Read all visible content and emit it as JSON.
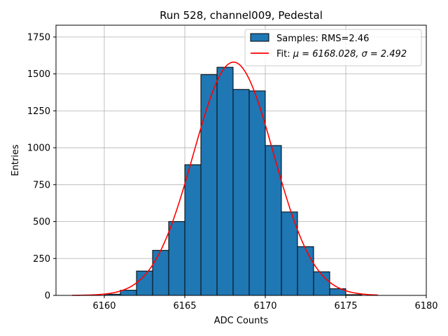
{
  "chart_data": {
    "type": "bar",
    "title": "Run 528, channel009, Pedestal",
    "xlabel": "ADC Counts",
    "ylabel": "Entries",
    "xlim": [
      6157,
      6180
    ],
    "ylim": [
      0,
      1830
    ],
    "xticks": [
      6160,
      6165,
      6170,
      6175,
      6180
    ],
    "yticks": [
      0,
      250,
      500,
      750,
      1000,
      1250,
      1500,
      1750
    ],
    "grid": true,
    "legend_position": "top-right",
    "histogram": {
      "name": "Samples: RMS=2.46",
      "color": "#1f77b4",
      "edgecolor": "#000000",
      "bin_width": 1,
      "bin_edges": [
        6160,
        6161,
        6162,
        6163,
        6164,
        6165,
        6166,
        6167,
        6168,
        6169,
        6170,
        6171,
        6172,
        6173,
        6174,
        6175,
        6176
      ],
      "counts": [
        8,
        35,
        165,
        305,
        500,
        885,
        1495,
        1545,
        1395,
        1385,
        1015,
        565,
        330,
        160,
        45,
        5
      ]
    },
    "fit": {
      "name_prefix": "Fit: ",
      "name_math": "μ = 6168.028, σ = 2.492",
      "name": "Fit: μ = 6168.028, σ = 2.492",
      "color": "#ff0000",
      "model": "gaussian",
      "mu": 6168.028,
      "sigma": 2.492,
      "amplitude": 1580,
      "x_range": [
        6158,
        6177
      ]
    }
  }
}
